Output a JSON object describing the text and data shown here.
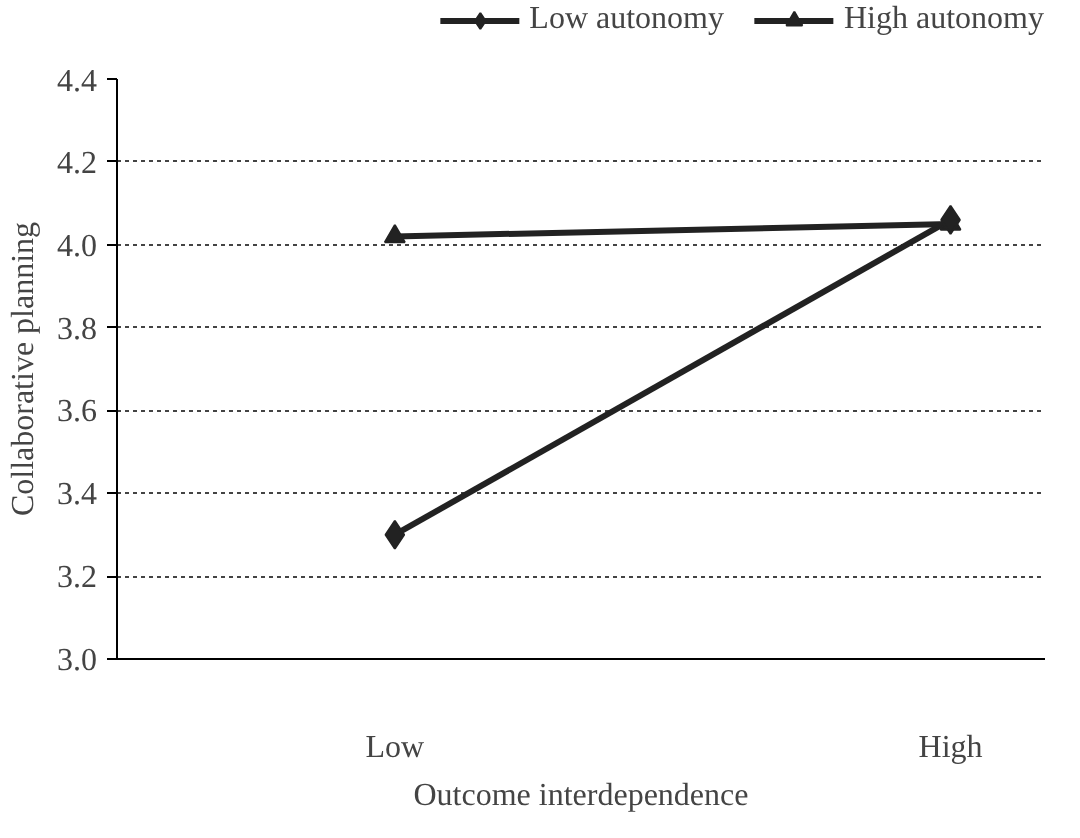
{
  "chart_data": {
    "type": "line",
    "xlabel": "Outcome interdependence",
    "ylabel": "Collaborative planning",
    "categories": [
      "Low",
      "High"
    ],
    "series": [
      {
        "name": "Low autonomy",
        "color": "#222222",
        "marker": "diamond",
        "values": [
          3.3,
          4.06
        ]
      },
      {
        "name": "High autonomy",
        "color": "#222222",
        "marker": "triangle",
        "values": [
          4.02,
          4.05
        ]
      }
    ],
    "ylim": [
      3.0,
      4.4
    ],
    "yticks": [
      {
        "value": 3,
        "label": "3.0"
      },
      {
        "value": 3.2,
        "label": "3.2"
      },
      {
        "value": 3.4,
        "label": "3.4"
      },
      {
        "value": 3.6,
        "label": "3.6"
      },
      {
        "value": 3.8,
        "label": "3.8"
      },
      {
        "value": 4,
        "label": "4.0"
      },
      {
        "value": 4.2,
        "label": "4.2"
      },
      {
        "value": 4.4,
        "label": "4.4"
      }
    ],
    "grid": "y",
    "legend": "top",
    "line_style": "solid"
  }
}
